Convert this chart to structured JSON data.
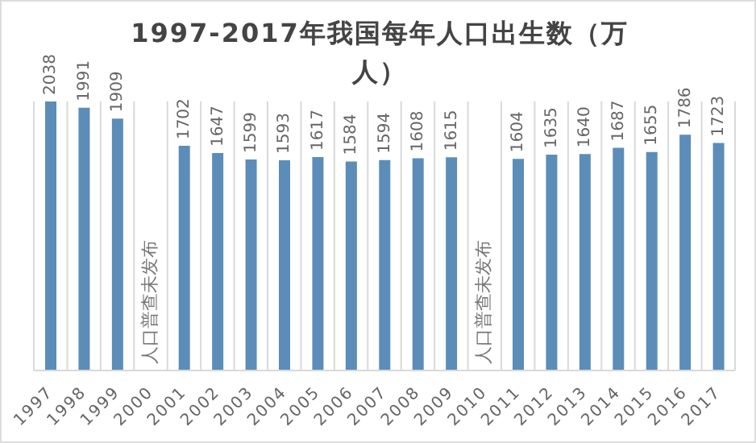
{
  "chart_data": {
    "type": "bar",
    "title": "1997-2017年我国每年人口出生数（万人）",
    "categories": [
      "1997",
      "1998",
      "1999",
      "2000",
      "2001",
      "2002",
      "2003",
      "2004",
      "2005",
      "2006",
      "2007",
      "2008",
      "2009",
      "2010",
      "2011",
      "2012",
      "2013",
      "2014",
      "2015",
      "2016",
      "2017"
    ],
    "values": [
      2038,
      1991,
      1909,
      null,
      1702,
      1647,
      1599,
      1593,
      1617,
      1584,
      1594,
      1608,
      1615,
      null,
      1604,
      1635,
      1640,
      1687,
      1655,
      1786,
      1723
    ],
    "color": "#5b8db8",
    "data_labels": true,
    "grid": "x",
    "annotations": [
      "人口普查未发布",
      "人口普查未发布"
    ]
  }
}
